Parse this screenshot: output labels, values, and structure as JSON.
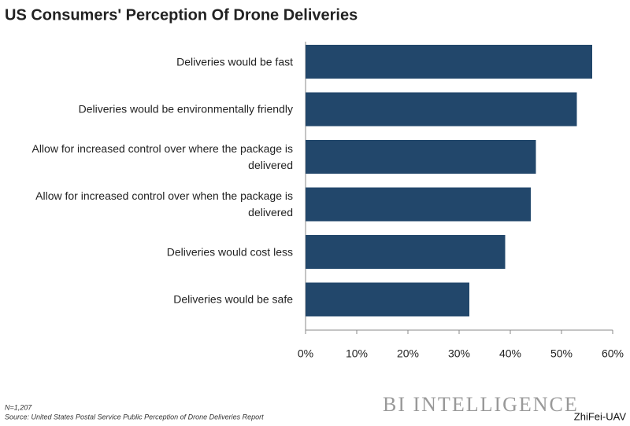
{
  "chart_data": {
    "type": "bar",
    "orientation": "horizontal",
    "title": "US Consumers' Perception Of Drone Deliveries",
    "categories": [
      "Deliveries would be fast",
      "Deliveries would be environmentally friendly",
      "Allow for increased control over where the package is delivered",
      "Allow for increased control over when the package is delivered",
      "Deliveries would cost less",
      "Deliveries would be safe"
    ],
    "values": [
      56,
      53,
      45,
      44,
      39,
      32
    ],
    "color": "#22476b",
    "xlim": [
      0,
      60
    ],
    "xticks": [
      {
        "value": 0,
        "label": "0%"
      },
      {
        "value": 10,
        "label": "10%"
      },
      {
        "value": 20,
        "label": "20%"
      },
      {
        "value": 30,
        "label": "30%"
      },
      {
        "value": 40,
        "label": "40%"
      },
      {
        "value": 50,
        "label": "50%"
      },
      {
        "value": 60,
        "label": "60%"
      }
    ],
    "note": "N=1,207",
    "source": "Source: United States Postal Service Public Perception of Drone Deliveries Report",
    "logo": "BI INTELLIGENCE",
    "watermark": "ZhiFei-UAV"
  }
}
